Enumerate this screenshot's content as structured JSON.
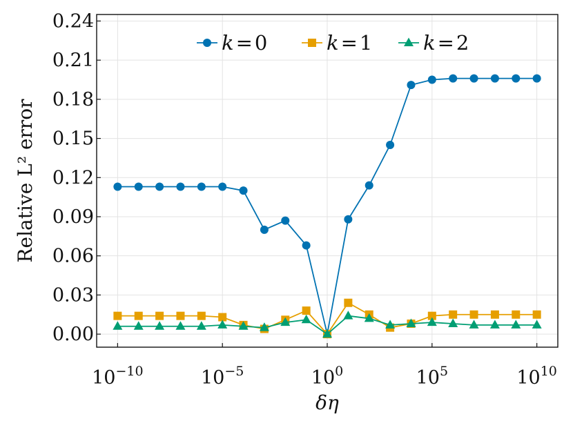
{
  "chart_data": {
    "type": "line",
    "title": "",
    "xlabel": "δη",
    "ylabel": "Relative L² error",
    "xscale": "log10",
    "xlim": [
      -11,
      11
    ],
    "ylim": [
      -0.01,
      0.245
    ],
    "yticks": [
      0.0,
      0.03,
      0.06,
      0.09,
      0.12,
      0.15,
      0.18,
      0.21,
      0.24
    ],
    "ytick_labels": [
      "0.00",
      "0.03",
      "0.06",
      "0.09",
      "0.12",
      "0.15",
      "0.18",
      "0.21",
      "0.24"
    ],
    "xticks": [
      -10,
      -5,
      0,
      5,
      10
    ],
    "xtick_labels": [
      {
        "base": "10",
        "exp": "−10"
      },
      {
        "base": "10",
        "exp": "−5"
      },
      {
        "base": "10",
        "exp": "0"
      },
      {
        "base": "10",
        "exp": "5"
      },
      {
        "base": "10",
        "exp": "10"
      }
    ],
    "grid": true,
    "legend_position": "top-center",
    "log10_x": [
      -10,
      -9,
      -8,
      -7,
      -6,
      -5,
      -4,
      -3,
      -2,
      -1,
      0,
      1,
      2,
      3,
      4,
      5,
      6,
      7,
      8,
      9,
      10
    ],
    "series": [
      {
        "name": "k = 0",
        "label_var": "k",
        "label_eq": "=",
        "label_val": "0",
        "color": "#0072b2",
        "marker": "circle",
        "values": [
          0.113,
          0.113,
          0.113,
          0.113,
          0.113,
          0.113,
          0.11,
          0.08,
          0.087,
          0.068,
          0.0,
          0.088,
          0.114,
          0.145,
          0.191,
          0.195,
          0.196,
          0.196,
          0.196,
          0.196,
          0.196
        ]
      },
      {
        "name": "k = 1",
        "label_var": "k",
        "label_eq": "=",
        "label_val": "1",
        "color": "#e69f00",
        "marker": "square",
        "values": [
          0.014,
          0.014,
          0.014,
          0.014,
          0.014,
          0.013,
          0.007,
          0.004,
          0.011,
          0.018,
          0.0,
          0.024,
          0.015,
          0.005,
          0.008,
          0.014,
          0.015,
          0.015,
          0.015,
          0.015,
          0.015
        ]
      },
      {
        "name": "k = 2",
        "label_var": "k",
        "label_eq": "=",
        "label_val": "2",
        "color": "#009e73",
        "marker": "triangle",
        "values": [
          0.006,
          0.006,
          0.006,
          0.006,
          0.006,
          0.007,
          0.006,
          0.005,
          0.009,
          0.011,
          0.0,
          0.014,
          0.012,
          0.007,
          0.008,
          0.009,
          0.008,
          0.007,
          0.007,
          0.007,
          0.007
        ]
      }
    ]
  }
}
